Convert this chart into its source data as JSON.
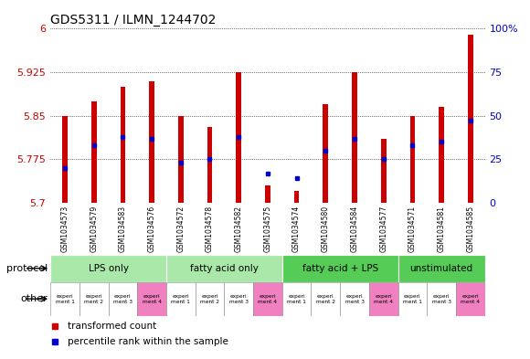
{
  "title": "GDS5311 / ILMN_1244702",
  "samples": [
    "GSM1034573",
    "GSM1034579",
    "GSM1034583",
    "GSM1034576",
    "GSM1034572",
    "GSM1034578",
    "GSM1034582",
    "GSM1034575",
    "GSM1034574",
    "GSM1034580",
    "GSM1034584",
    "GSM1034577",
    "GSM1034571",
    "GSM1034581",
    "GSM1034585"
  ],
  "red_values": [
    5.85,
    5.875,
    5.9,
    5.91,
    5.85,
    5.83,
    5.925,
    5.73,
    5.72,
    5.87,
    5.925,
    5.81,
    5.85,
    5.865,
    5.99
  ],
  "blue_percentiles": [
    20,
    33,
    38,
    37,
    23,
    25,
    38,
    17,
    14,
    30,
    37,
    25,
    33,
    35,
    47
  ],
  "y_min": 5.7,
  "y_max": 6.0,
  "yticks": [
    5.7,
    5.775,
    5.85,
    5.925,
    6.0
  ],
  "ytick_labels": [
    "5.7",
    "5.775",
    "5.85",
    "5.925",
    "6"
  ],
  "y2_ticks": [
    0,
    25,
    50,
    75,
    100
  ],
  "y2_tick_labels": [
    "0",
    "25",
    "50",
    "75",
    "100%"
  ],
  "protocol_groups": [
    {
      "label": "LPS only",
      "start": 0,
      "end": 4
    },
    {
      "label": "fatty acid only",
      "start": 4,
      "end": 8
    },
    {
      "label": "fatty acid + LPS",
      "start": 8,
      "end": 12
    },
    {
      "label": "unstimulated",
      "start": 12,
      "end": 15
    }
  ],
  "light_green": "#aae8aa",
  "dark_green": "#55cc55",
  "pink": "#f080c0",
  "bar_width": 0.18,
  "red_color": "#cc0000",
  "blue_color": "#0000cc",
  "plot_bg": "#ffffff",
  "xticklabel_bg": "#c8c8c8",
  "left_label_color": "#cc0000",
  "right_label_color": "#0000cc"
}
